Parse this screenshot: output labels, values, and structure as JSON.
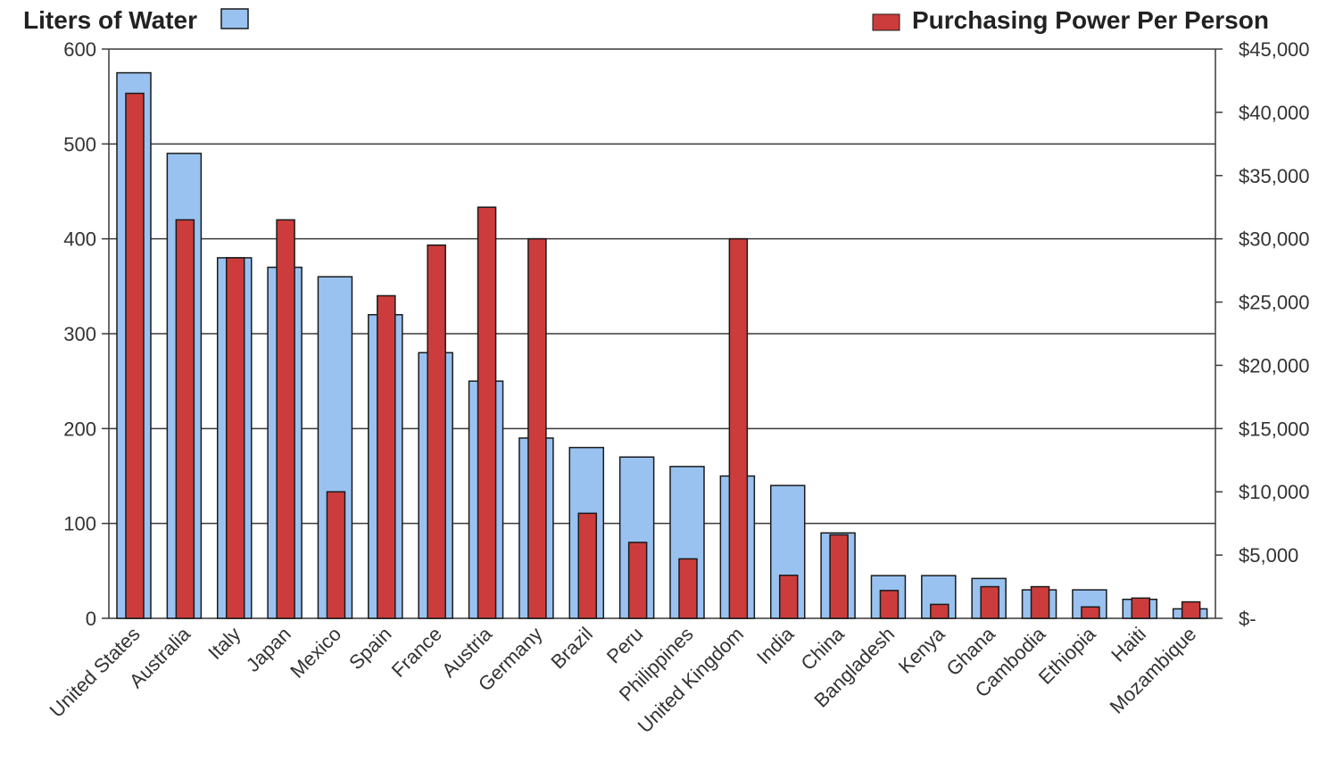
{
  "chart_data": {
    "type": "bar",
    "categories": [
      "United States",
      "Australia",
      "Italy",
      "Japan",
      "Mexico",
      "Spain",
      "France",
      "Austria",
      "Germany",
      "Brazil",
      "Peru",
      "Philippines",
      "United Kingdom",
      "India",
      "China",
      "Bangladesh",
      "Kenya",
      "Ghana",
      "Cambodia",
      "Ethiopia",
      "Haiti",
      "Mozambique"
    ],
    "series": [
      {
        "name": "Liters of Water",
        "axis": "left",
        "color": "#99c2f0",
        "values": [
          575,
          490,
          380,
          370,
          360,
          320,
          280,
          250,
          190,
          180,
          170,
          160,
          150,
          140,
          90,
          45,
          45,
          42,
          30,
          30,
          20,
          10
        ]
      },
      {
        "name": "Purchasing Power Per Person",
        "axis": "right",
        "color": "#cd3c3c",
        "values": [
          41500,
          31500,
          28500,
          31500,
          10000,
          25500,
          29500,
          32500,
          30000,
          8300,
          6000,
          4700,
          30000,
          3400,
          6600,
          2200,
          1100,
          2500,
          2500,
          900,
          1600,
          1300
        ]
      }
    ],
    "y_left": {
      "ylim": [
        0,
        600
      ],
      "ticks": [
        "0",
        "100",
        "200",
        "300",
        "400",
        "500",
        "600"
      ]
    },
    "y_right": {
      "ylim": [
        0,
        45000
      ],
      "ticks": [
        "$-",
        "$5,000",
        "$10,000",
        "$15,000",
        "$20,000",
        "$25,000",
        "$30,000",
        "$35,000",
        "$40,000",
        "$45,000"
      ]
    },
    "grid": "horizontal",
    "legend": [
      "top-left",
      "top-right"
    ]
  }
}
